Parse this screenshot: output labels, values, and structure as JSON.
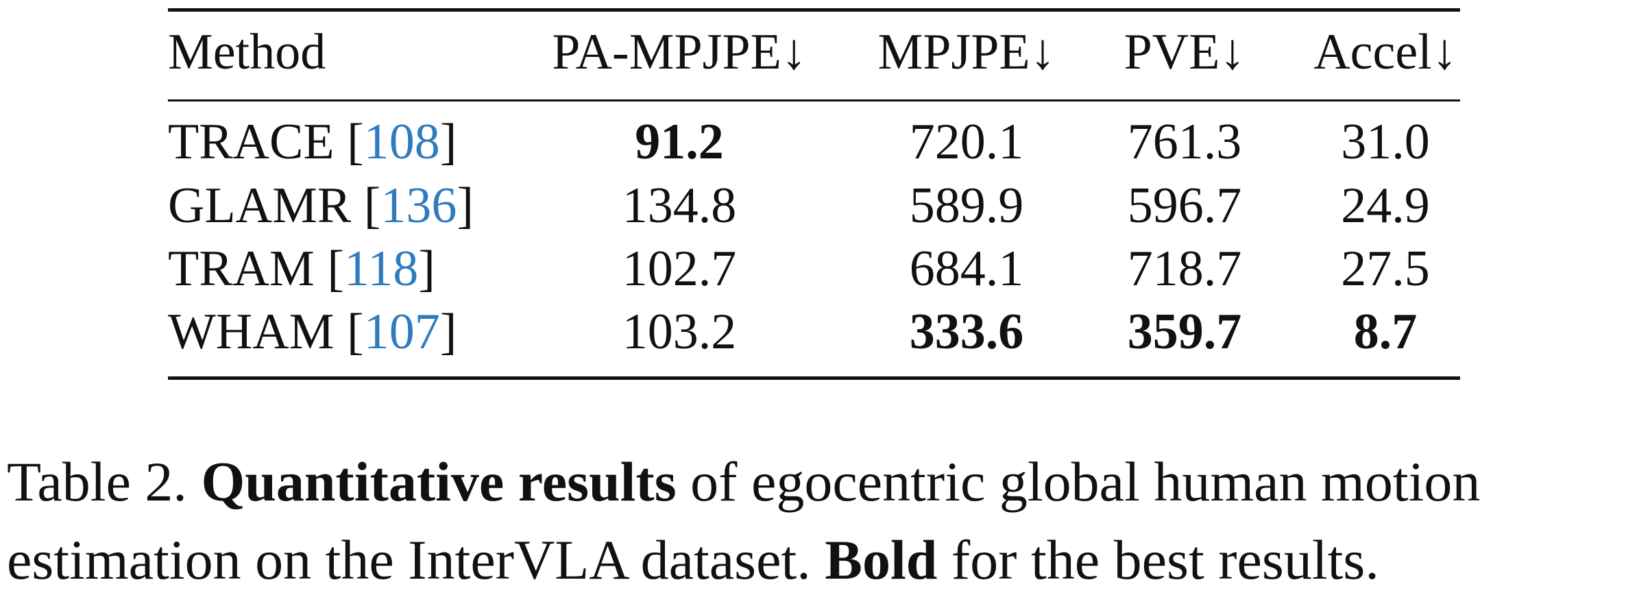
{
  "table": {
    "header": [
      "Method",
      "PA-MPJPE↓",
      "MPJPE↓",
      "PVE↓",
      "Accel↓"
    ],
    "rows": [
      {
        "method": "TRACE",
        "cite": [
          "[",
          "108",
          "]"
        ],
        "values": [
          "91.2",
          "720.1",
          "761.3",
          "31.0"
        ],
        "bold": [
          true,
          false,
          false,
          false
        ]
      },
      {
        "method": "GLAMR",
        "cite": [
          "[",
          "136",
          "]"
        ],
        "values": [
          "134.8",
          "589.9",
          "596.7",
          "24.9"
        ],
        "bold": [
          false,
          false,
          false,
          false
        ]
      },
      {
        "method": "TRAM",
        "cite": [
          "[",
          "118",
          "]"
        ],
        "values": [
          "102.7",
          "684.1",
          "718.7",
          "27.5"
        ],
        "bold": [
          false,
          false,
          false,
          false
        ]
      },
      {
        "method": "WHAM",
        "cite": [
          "[",
          "107",
          "]"
        ],
        "values": [
          "103.2",
          "333.6",
          "359.7",
          "8.7"
        ],
        "bold": [
          false,
          true,
          true,
          true
        ]
      }
    ]
  },
  "caption": {
    "lines": [
      [
        {
          "text": "Table 2. ",
          "bold": false
        },
        {
          "text": "Quantitative results",
          "bold": true
        },
        {
          "text": " of egocentric global human motion",
          "bold": false
        }
      ],
      [
        {
          "text": "estimation on the InterVLA dataset. ",
          "bold": false
        },
        {
          "text": "Bold",
          "bold": true
        },
        {
          "text": " for the best results.",
          "bold": false
        }
      ]
    ]
  }
}
